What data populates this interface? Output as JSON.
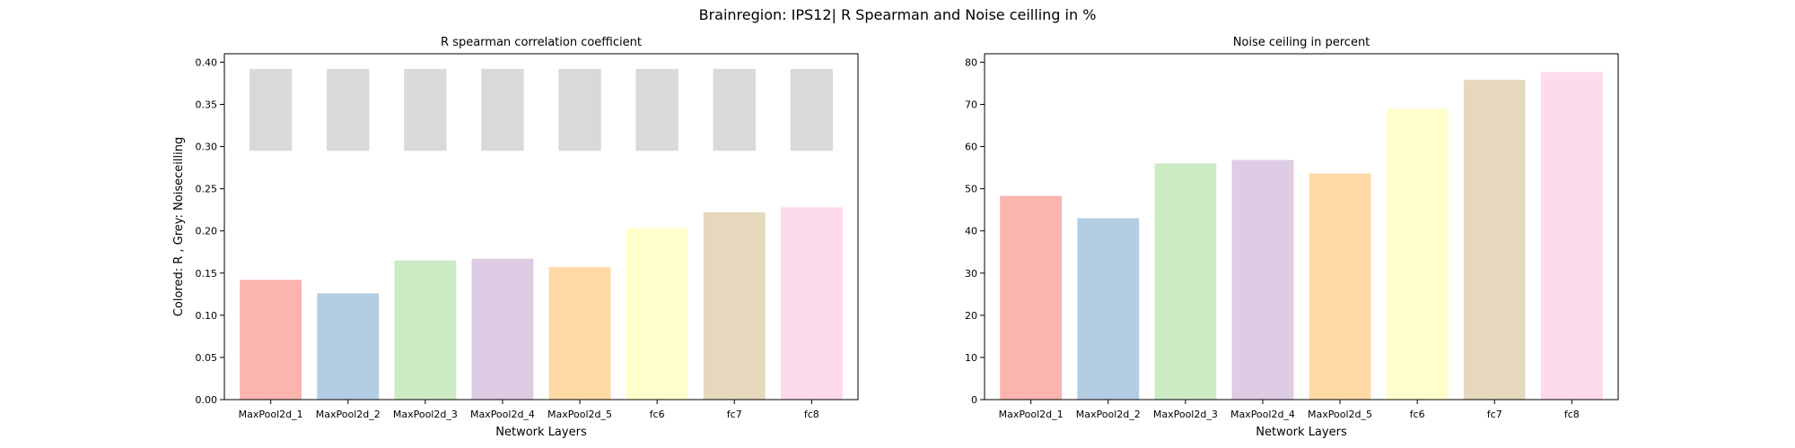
{
  "figure": {
    "suptitle": "Brainregion: IPS12| R Spearman and Noise ceilling in %"
  },
  "chart_data": [
    {
      "type": "bar",
      "title": "R spearman correlation coefficient",
      "xlabel": "Network Layers",
      "ylabel": "Colored: R , Grey: Noiseceilling",
      "categories": [
        "MaxPool2d_1",
        "MaxPool2d_2",
        "MaxPool2d_3",
        "MaxPool2d_4",
        "MaxPool2d_5",
        "fc6",
        "fc7",
        "fc8"
      ],
      "series": [
        {
          "values": [
            0.142,
            0.126,
            0.165,
            0.167,
            0.157,
            0.203,
            0.222,
            0.228
          ]
        }
      ],
      "noise_ceiling": {
        "lower": 0.295,
        "upper": 0.392
      },
      "ylim": [
        0,
        0.41
      ],
      "yticks": [
        0.0,
        0.05,
        0.1,
        0.15,
        0.2,
        0.25,
        0.3,
        0.35,
        0.4
      ],
      "ytick_labels": [
        "0.00",
        "0.05",
        "0.10",
        "0.15",
        "0.20",
        "0.25",
        "0.30",
        "0.35",
        "0.40"
      ],
      "colors": [
        "#fbb4ae",
        "#b3cde3",
        "#ccebc5",
        "#decbe4",
        "#fed9a6",
        "#ffffcc",
        "#e5d8bd",
        "#fddaec"
      ],
      "noise_color": "#d9d9d9",
      "grid": false,
      "legend": "none"
    },
    {
      "type": "bar",
      "title": "Noise ceiling in percent",
      "xlabel": "Network Layers",
      "ylabel": "",
      "categories": [
        "MaxPool2d_1",
        "MaxPool2d_2",
        "MaxPool2d_3",
        "MaxPool2d_4",
        "MaxPool2d_5",
        "fc6",
        "fc7",
        "fc8"
      ],
      "series": [
        {
          "values": [
            48.3,
            43.0,
            56.0,
            56.8,
            53.6,
            69.0,
            75.8,
            77.7
          ]
        }
      ],
      "ylim": [
        0,
        82
      ],
      "yticks": [
        0,
        10,
        20,
        30,
        40,
        50,
        60,
        70,
        80
      ],
      "ytick_labels": [
        "0",
        "10",
        "20",
        "30",
        "40",
        "50",
        "60",
        "70",
        "80"
      ],
      "colors": [
        "#fbb4ae",
        "#b3cde3",
        "#ccebc5",
        "#decbe4",
        "#fed9a6",
        "#ffffcc",
        "#e5d8bd",
        "#fddaec"
      ],
      "grid": false,
      "legend": "none"
    }
  ]
}
